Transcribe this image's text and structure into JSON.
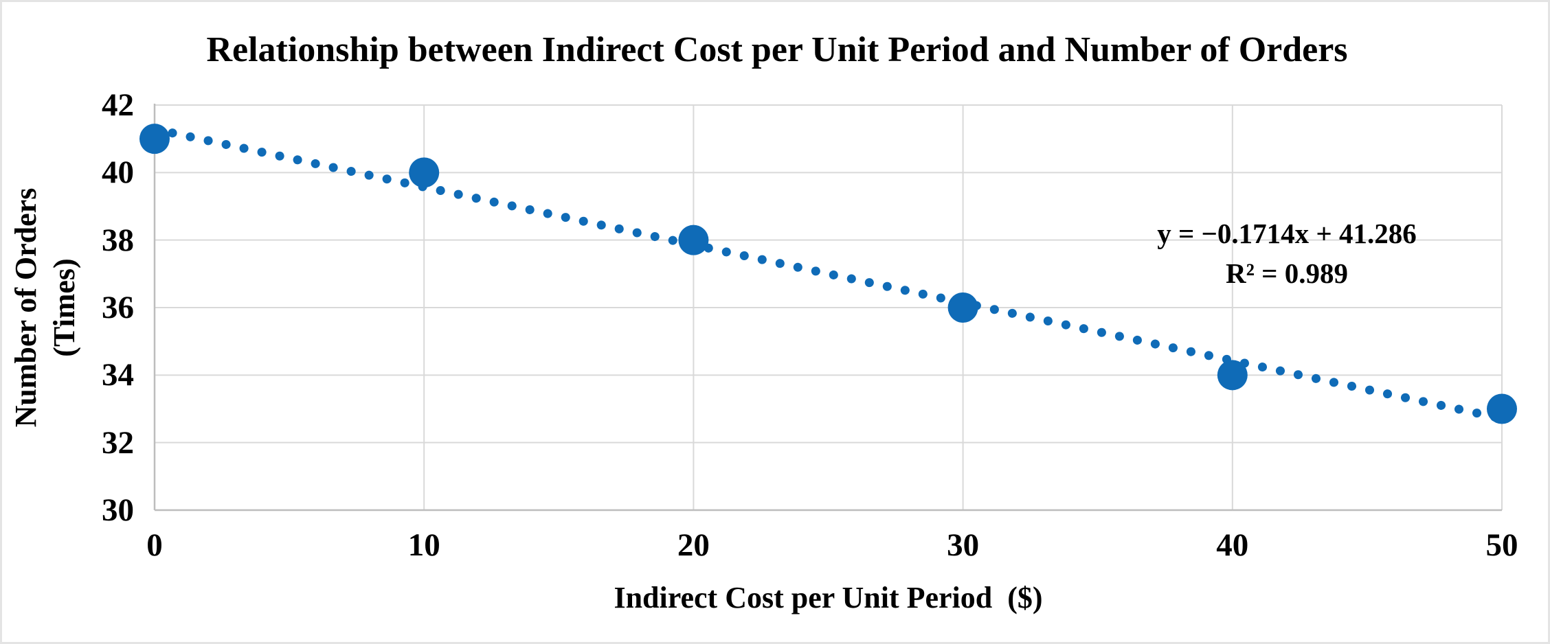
{
  "chart_data": {
    "type": "scatter",
    "title": "Relationship between Indirect Cost per Unit Period and Number of Orders",
    "xlabel": "Indirect Cost per Unit Period  ($)",
    "ylabel": "Number of Orders (Times)",
    "series": [
      {
        "name": "Number of Orders",
        "x": [
          0,
          10,
          20,
          30,
          40,
          50
        ],
        "y": [
          41,
          40,
          38,
          36,
          34,
          33
        ]
      }
    ],
    "xlim": [
      0,
      50
    ],
    "ylim": [
      30,
      42
    ],
    "xticks": [
      0,
      10,
      20,
      30,
      40,
      50
    ],
    "yticks": [
      30,
      32,
      34,
      36,
      38,
      40,
      42
    ],
    "grid": true,
    "legend": "none",
    "trendline": {
      "slope": -0.1714,
      "intercept": 41.286,
      "style": "dotted",
      "equation_label": "y = −0.1714x + 41.286",
      "r_squared_label": "R² = 0.989"
    },
    "colors": {
      "marker": "#0F6BB7",
      "trendline": "#0F6BB7",
      "gridline": "#D9D9D9",
      "axis_line": "#BDBDBD",
      "text": "#000000",
      "background": "#FFFFFF"
    }
  }
}
